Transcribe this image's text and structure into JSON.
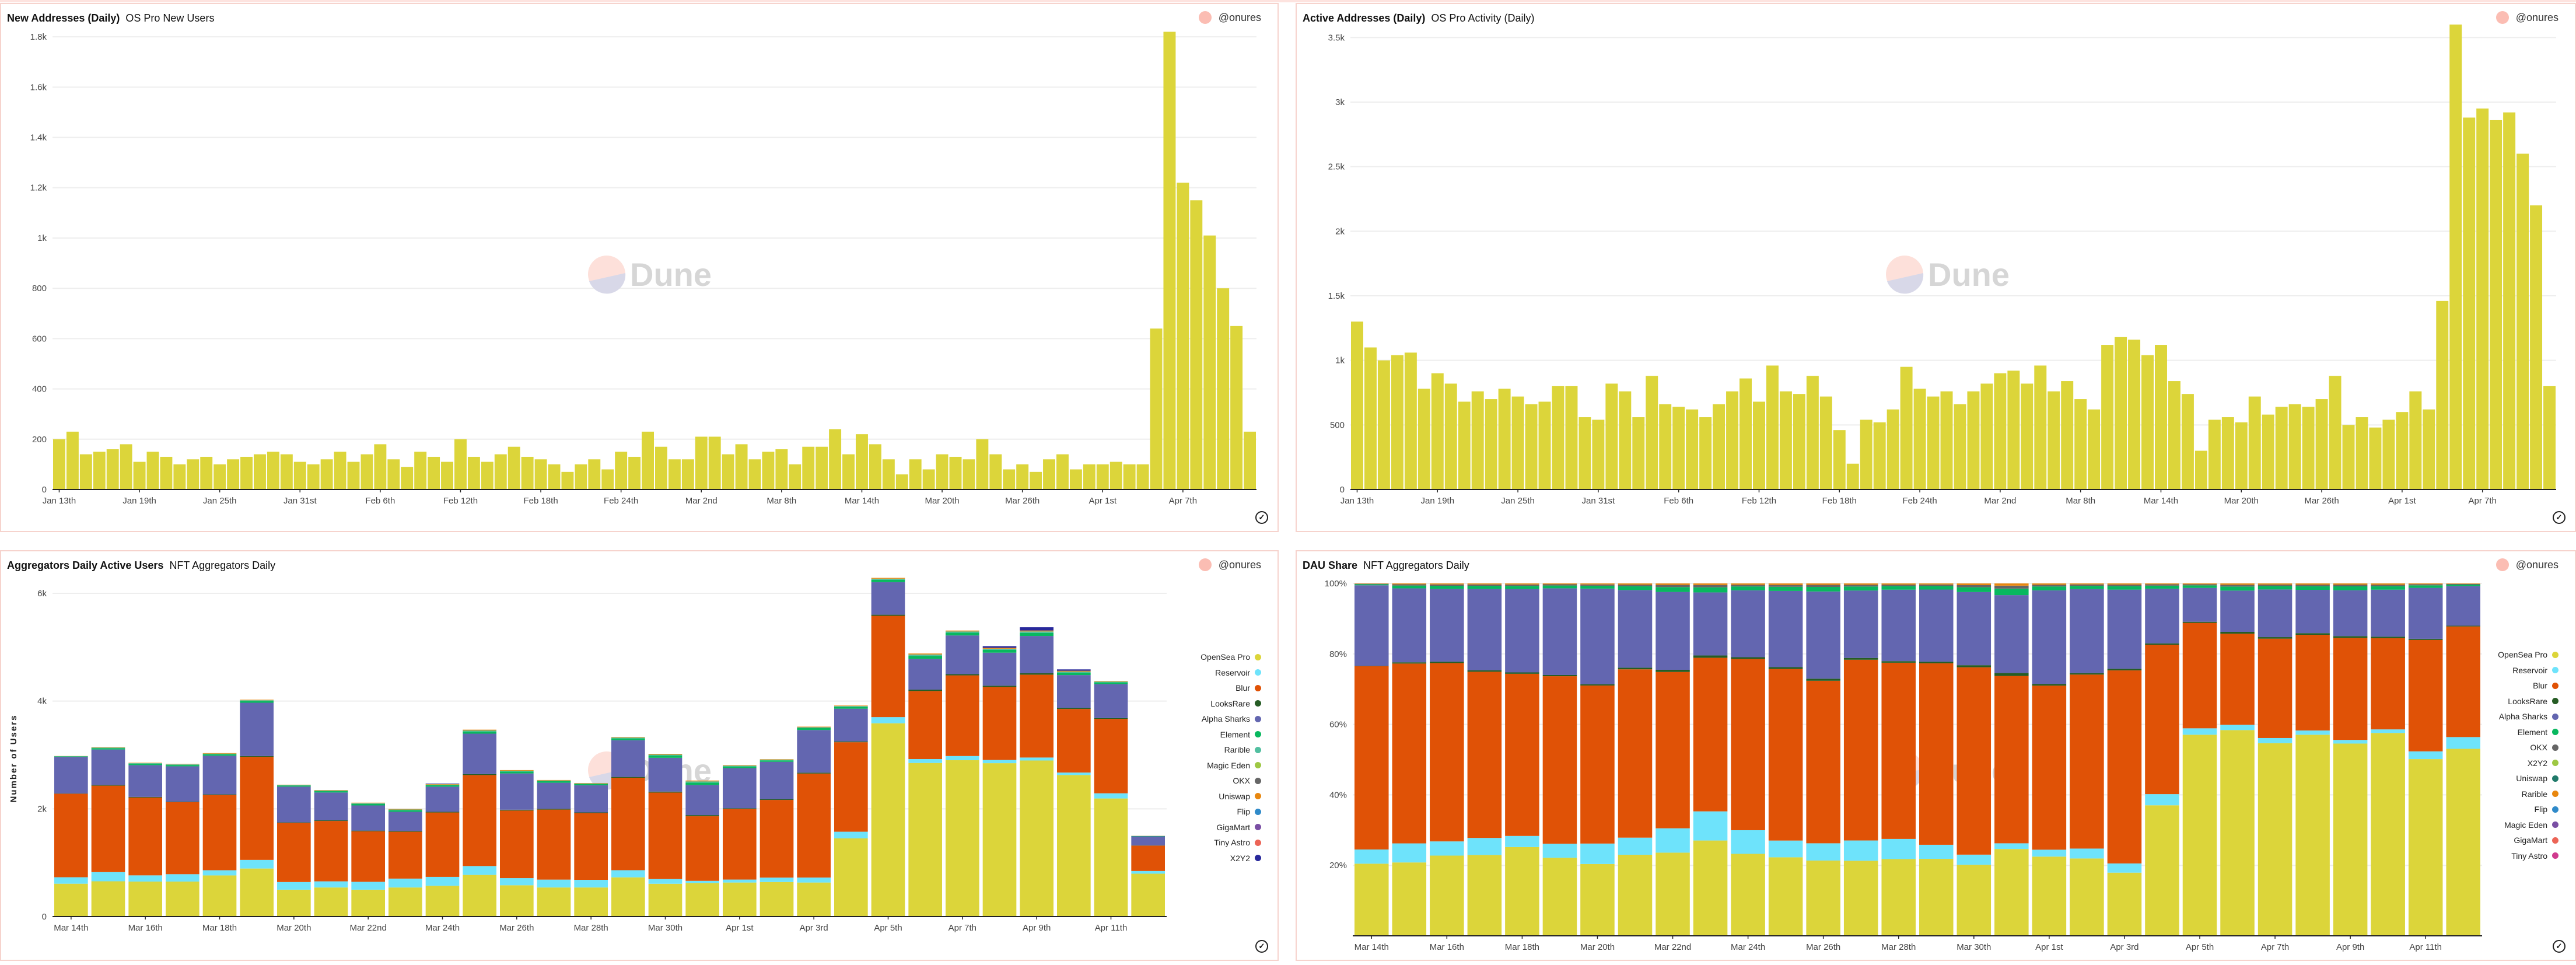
{
  "author": "@onures",
  "watermark": "Dune",
  "panels": [
    {
      "title": "New Addresses (Daily)",
      "subtitle": "OS Pro New Users"
    },
    {
      "title": "Active Addresses (Daily)",
      "subtitle": "OS Pro Activity (Daily)"
    },
    {
      "title": "Aggregators Daily Active Users",
      "subtitle": "NFT Aggregators Daily"
    },
    {
      "title": "DAU Share",
      "subtitle": "NFT Aggregators Daily"
    }
  ],
  "chart_data": [
    {
      "type": "bar",
      "title": "New Addresses (Daily)",
      "color": "#dcd53a",
      "ylim": [
        0,
        1900
      ],
      "yticks": [
        0,
        200,
        400,
        600,
        800,
        1000,
        1200,
        1400,
        1600,
        1800
      ],
      "ytick_labels": [
        "0",
        "200",
        "400",
        "600",
        "800",
        "1k",
        "1.2k",
        "1.4k",
        "1.6k",
        "1.8k"
      ],
      "xtick_every": 6,
      "xtick_labels": [
        "Jan 13th",
        "Jan 19th",
        "Jan 25th",
        "Jan 31st",
        "Feb 6th",
        "Feb 12th",
        "Feb 18th",
        "Feb 24th",
        "Mar 2nd",
        "Mar 8th",
        "Mar 14th",
        "Mar 20th",
        "Mar 26th",
        "Apr 1st",
        "Apr 7th"
      ],
      "values": [
        200,
        230,
        140,
        150,
        160,
        180,
        110,
        150,
        130,
        100,
        120,
        130,
        100,
        120,
        130,
        140,
        150,
        140,
        110,
        100,
        120,
        150,
        110,
        140,
        180,
        120,
        90,
        150,
        130,
        110,
        200,
        130,
        110,
        140,
        170,
        130,
        120,
        100,
        70,
        100,
        120,
        80,
        150,
        130,
        230,
        170,
        120,
        120,
        210,
        210,
        140,
        180,
        120,
        150,
        160,
        100,
        170,
        170,
        240,
        140,
        220,
        180,
        120,
        60,
        120,
        80,
        140,
        130,
        120,
        200,
        140,
        80,
        100,
        70,
        120,
        140,
        80,
        100,
        100,
        110,
        100,
        100,
        640,
        1820,
        1220,
        1150,
        1010,
        800,
        650,
        230
      ]
    },
    {
      "type": "bar",
      "title": "Active Addresses (Daily)",
      "color": "#dcd53a",
      "ylim": [
        0,
        3700
      ],
      "yticks": [
        0,
        500,
        1000,
        1500,
        2000,
        2500,
        3000,
        3500
      ],
      "ytick_labels": [
        "0",
        "500",
        "1k",
        "1.5k",
        "2k",
        "2.5k",
        "3k",
        "3.5k"
      ],
      "xtick_every": 6,
      "xtick_labels": [
        "Jan 13th",
        "Jan 19th",
        "Jan 25th",
        "Jan 31st",
        "Feb 6th",
        "Feb 12th",
        "Feb 18th",
        "Feb 24th",
        "Mar 2nd",
        "Mar 8th",
        "Mar 14th",
        "Mar 20th",
        "Mar 26th",
        "Apr 1st",
        "Apr 7th"
      ],
      "values": [
        1300,
        1100,
        1000,
        1040,
        1060,
        780,
        900,
        820,
        680,
        760,
        700,
        780,
        720,
        660,
        680,
        800,
        800,
        560,
        540,
        820,
        760,
        560,
        880,
        660,
        640,
        620,
        560,
        660,
        760,
        860,
        680,
        960,
        760,
        740,
        880,
        720,
        460,
        200,
        540,
        520,
        620,
        950,
        780,
        720,
        760,
        660,
        760,
        820,
        900,
        920,
        820,
        960,
        760,
        840,
        700,
        620,
        1120,
        1180,
        1160,
        1040,
        1120,
        840,
        740,
        300,
        540,
        560,
        520,
        720,
        580,
        640,
        660,
        640,
        700,
        880,
        500,
        560,
        480,
        540,
        600,
        760,
        620,
        1460,
        3600,
        2880,
        2950,
        2860,
        2920,
        2600,
        2200,
        800
      ]
    },
    {
      "type": "bar",
      "stacking": "normal",
      "title": "Aggregators Daily Active Users",
      "ylabel": "Number of Users",
      "ylim": [
        0,
        6400
      ],
      "yticks": [
        0,
        2000,
        4000,
        6000
      ],
      "ytick_labels": [
        "0",
        "2k",
        "4k",
        "6k"
      ],
      "xtick_every": 2,
      "xtick_labels": [
        "Mar 14th",
        "Mar 16th",
        "Mar 18th",
        "Mar 20th",
        "Mar 22nd",
        "Mar 24th",
        "Mar 26th",
        "Mar 28th",
        "Mar 30th",
        "Apr 1st",
        "Apr 3rd",
        "Apr 5th",
        "Apr 7th",
        "Apr 9th",
        "Apr 11th"
      ],
      "legend_position": "right",
      "legend": [
        {
          "name": "OpenSea Pro",
          "color": "#dcd53a"
        },
        {
          "name": "Reservoir",
          "color": "#6ee3fb"
        },
        {
          "name": "Blur",
          "color": "#e05206"
        },
        {
          "name": "LooksRare",
          "color": "#265c24"
        },
        {
          "name": "Alpha Sharks",
          "color": "#6366b0"
        },
        {
          "name": "Element",
          "color": "#08b85f"
        },
        {
          "name": "Rarible",
          "color": "#52bfa0"
        },
        {
          "name": "Magic Eden",
          "color": "#9ec844"
        },
        {
          "name": "OKX",
          "color": "#666666"
        },
        {
          "name": "Uniswap",
          "color": "#e8870f"
        },
        {
          "name": "Flip",
          "color": "#2f8ac9"
        },
        {
          "name": "GigaMart",
          "color": "#7a4fa4"
        },
        {
          "name": "Tiny Astro",
          "color": "#ec6456"
        },
        {
          "name": "X2Y2",
          "color": "#28289b"
        }
      ],
      "series": [
        {
          "name": "OpenSea Pro",
          "color": "#dcd53a",
          "values": [
            610,
            655,
            650,
            650,
            764,
            892,
            499,
            540,
            499,
            540,
            572,
            773,
            581,
            540,
            540,
            728,
            609,
            622,
            632,
            641,
            632,
            1451,
            3588,
            2851,
            2902,
            2847,
            2897,
            2627,
            2192,
            796
          ]
        },
        {
          "name": "Reservoir",
          "color": "#6ee3fb",
          "values": [
            120,
            170,
            115,
            137,
            96,
            160,
            142,
            114,
            146,
            165,
            165,
            165,
            133,
            146,
            142,
            133,
            87,
            41,
            55,
            82,
            92,
            124,
            114,
            73,
            78,
            60,
            55,
            46,
            96,
            50
          ]
        },
        {
          "name": "Blur",
          "color": "#e05206",
          "values": [
            1550,
            1605,
            1445,
            1336,
            1396,
            1913,
            1098,
            1121,
            938,
            870,
            1195,
            1689,
            1254,
            1300,
            1240,
            1716,
            1606,
            1199,
            1309,
            1442,
            1931,
            1661,
            1881,
            1263,
            1497,
            1355,
            1538,
            1181,
            1382,
            471
          ]
        },
        {
          "name": "LooksRare",
          "color": "#265c24",
          "values": [
            4,
            11,
            11,
            11,
            12,
            14,
            9,
            11,
            13,
            13,
            12,
            18,
            16,
            13,
            11,
            15,
            18,
            21,
            14,
            12,
            16,
            15,
            20,
            25,
            23,
            23,
            26,
            20,
            14,
            3
          ]
        },
        {
          "name": "Alpha Sharks",
          "color": "#6366b0",
          "values": [
            680,
            660,
            590,
            655,
            718,
            990,
            664,
            517,
            467,
            357,
            467,
            750,
            673,
            485,
            503,
            682,
            627,
            558,
            746,
            696,
            792,
            608,
            604,
            572,
            718,
            613,
            692,
            608,
            632,
            169
          ]
        },
        {
          "name": "Element",
          "color": "#08b85f",
          "values": [
            9,
            25,
            25,
            25,
            27,
            32,
            20,
            25,
            29,
            29,
            27,
            41,
            35,
            29,
            25,
            33,
            41,
            47,
            31,
            27,
            35,
            33,
            45,
            56,
            51,
            51,
            58,
            45,
            31,
            6
          ]
        },
        {
          "name": "Rarible",
          "color": "#52bfa0",
          "values": [
            4,
            11,
            11,
            11,
            12,
            14,
            9,
            11,
            13,
            13,
            12,
            18,
            16,
            13,
            11,
            15,
            18,
            21,
            14,
            12,
            16,
            15,
            20,
            25,
            23,
            23,
            26,
            20,
            14,
            3
          ]
        },
        {
          "name": "Uniswap",
          "color": "#e8870f",
          "values": [
            3,
            8,
            8,
            8,
            9,
            10,
            7,
            8,
            9,
            9,
            9,
            15,
            11,
            9,
            8,
            10,
            15,
            16,
            10,
            8,
            11,
            10,
            15,
            18,
            17,
            17,
            18,
            16,
            10,
            2
          ]
        },
        {
          "name": "X2Y2",
          "color": "#28289b",
          "values": [
            0,
            0,
            0,
            0,
            0,
            0,
            0,
            0,
            0,
            0,
            10,
            0,
            0,
            0,
            0,
            0,
            0,
            0,
            0,
            0,
            0,
            0,
            0,
            0,
            0,
            30,
            60,
            25,
            0,
            0
          ]
        }
      ]
    },
    {
      "type": "bar",
      "stacking": "percent",
      "title": "DAU Share",
      "ylim": [
        0,
        100
      ],
      "yticks": [
        0,
        20,
        40,
        60,
        80,
        100
      ],
      "ytick_labels": [
        "",
        "20%",
        "40%",
        "60%",
        "80%",
        "100%"
      ],
      "xtick_every": 2,
      "xtick_labels": [
        "Mar 14th",
        "Mar 16th",
        "Mar 18th",
        "Mar 20th",
        "Mar 22nd",
        "Mar 24th",
        "Mar 26th",
        "Mar 28th",
        "Mar 30th",
        "Apr 1st",
        "Apr 3rd",
        "Apr 5th",
        "Apr 7th",
        "Apr 9th",
        "Apr 11th"
      ],
      "legend_position": "right",
      "legend": [
        {
          "name": "OpenSea Pro",
          "color": "#dcd53a"
        },
        {
          "name": "Reservoir",
          "color": "#6ee3fb"
        },
        {
          "name": "Blur",
          "color": "#e05206"
        },
        {
          "name": "LooksRare",
          "color": "#265c24"
        },
        {
          "name": "Alpha Sharks",
          "color": "#6366b0"
        },
        {
          "name": "Element",
          "color": "#08b85f"
        },
        {
          "name": "OKX",
          "color": "#666666"
        },
        {
          "name": "X2Y2",
          "color": "#9ec844"
        },
        {
          "name": "Uniswap",
          "color": "#207a6a"
        },
        {
          "name": "Rarible",
          "color": "#e8870f"
        },
        {
          "name": "Flip",
          "color": "#2f8ac9"
        },
        {
          "name": "Magic Eden",
          "color": "#7a4fa4"
        },
        {
          "name": "GigaMart",
          "color": "#ec6456"
        },
        {
          "name": "Tiny Astro",
          "color": "#d03a8e"
        }
      ],
      "series_note_values_are_user_counts_normalized_to_100": true,
      "series": [
        {
          "name": "OpenSea Pro",
          "color": "#dcd53a",
          "values": [
            610,
            655,
            650,
            650,
            764,
            892,
            499,
            540,
            499,
            540,
            572,
            773,
            581,
            540,
            540,
            728,
            609,
            622,
            632,
            641,
            632,
            1451,
            3588,
            2851,
            2902,
            2847,
            2897,
            2627,
            2192,
            796
          ]
        },
        {
          "name": "Reservoir",
          "color": "#6ee3fb",
          "values": [
            120,
            170,
            115,
            137,
            96,
            160,
            142,
            114,
            146,
            165,
            165,
            165,
            133,
            146,
            142,
            133,
            87,
            41,
            55,
            82,
            92,
            124,
            114,
            73,
            78,
            60,
            55,
            46,
            96,
            50
          ]
        },
        {
          "name": "Blur",
          "color": "#e05206",
          "values": [
            1550,
            1605,
            1445,
            1336,
            1396,
            1913,
            1098,
            1121,
            938,
            870,
            1195,
            1689,
            1254,
            1300,
            1240,
            1716,
            1606,
            1199,
            1309,
            1442,
            1931,
            1661,
            1881,
            1263,
            1497,
            1355,
            1538,
            1181,
            1382,
            471
          ]
        },
        {
          "name": "LooksRare",
          "color": "#265c24",
          "values": [
            4,
            11,
            11,
            11,
            12,
            14,
            9,
            11,
            13,
            13,
            12,
            18,
            16,
            13,
            11,
            15,
            18,
            21,
            14,
            12,
            16,
            15,
            20,
            25,
            23,
            23,
            26,
            20,
            14,
            3
          ]
        },
        {
          "name": "Alpha Sharks",
          "color": "#6366b0",
          "values": [
            680,
            660,
            590,
            655,
            718,
            990,
            664,
            517,
            467,
            357,
            467,
            750,
            673,
            485,
            503,
            682,
            627,
            558,
            746,
            696,
            792,
            608,
            604,
            572,
            718,
            613,
            692,
            608,
            632,
            169
          ]
        },
        {
          "name": "Element",
          "color": "#08b85f",
          "values": [
            9,
            25,
            25,
            25,
            27,
            32,
            20,
            25,
            29,
            29,
            27,
            41,
            35,
            29,
            25,
            33,
            41,
            47,
            31,
            27,
            35,
            33,
            45,
            56,
            51,
            51,
            58,
            45,
            31,
            6
          ]
        },
        {
          "name": "OKX",
          "color": "#666666",
          "values": [
            4,
            11,
            11,
            11,
            12,
            14,
            9,
            11,
            13,
            13,
            12,
            18,
            16,
            13,
            11,
            15,
            18,
            21,
            14,
            12,
            16,
            15,
            20,
            25,
            23,
            23,
            26,
            20,
            14,
            3
          ]
        },
        {
          "name": "Rarible",
          "color": "#e8870f",
          "values": [
            3,
            8,
            8,
            8,
            9,
            10,
            7,
            8,
            9,
            9,
            9,
            15,
            11,
            9,
            8,
            10,
            15,
            16,
            10,
            8,
            11,
            10,
            15,
            18,
            17,
            17,
            18,
            16,
            10,
            2
          ]
        }
      ]
    }
  ]
}
